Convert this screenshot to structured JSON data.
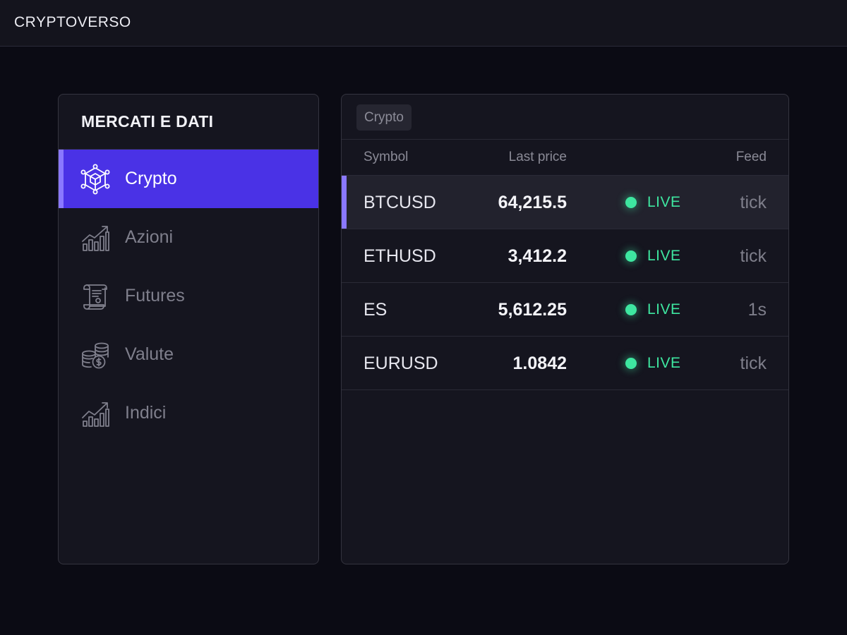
{
  "app": {
    "title": "CRYPTOVERSO"
  },
  "sidebar": {
    "title": "MERCATI E DATI",
    "items": [
      {
        "label": "Crypto",
        "icon": "crypto-network-icon",
        "active": true
      },
      {
        "label": "Azioni",
        "icon": "stocks-chart-icon",
        "active": false
      },
      {
        "label": "Futures",
        "icon": "contract-scroll-icon",
        "active": false
      },
      {
        "label": "Valute",
        "icon": "coins-stack-icon",
        "active": false
      },
      {
        "label": "Indici",
        "icon": "index-chart-icon",
        "active": false
      }
    ]
  },
  "main": {
    "tab": {
      "label": "Crypto"
    },
    "columns": {
      "symbol": "Symbol",
      "price": "Last price",
      "feed": "Feed"
    },
    "rows": [
      {
        "symbol": "BTCUSD",
        "price": "64,215.5",
        "status": "LIVE",
        "feed": "tick"
      },
      {
        "symbol": "ETHUSD",
        "price": "3,412.2",
        "status": "LIVE",
        "feed": "tick"
      },
      {
        "symbol": "ES",
        "price": "5,612.25",
        "status": "LIVE",
        "feed": "1s"
      },
      {
        "symbol": "EURUSD",
        "price": "1.0842",
        "status": "LIVE",
        "feed": "tick"
      }
    ]
  },
  "colors": {
    "accent": "#4a32e6",
    "accent_bar": "#8a78ff",
    "live": "#3ee6a0",
    "background": "#0b0b14",
    "panel": "#15151f"
  }
}
